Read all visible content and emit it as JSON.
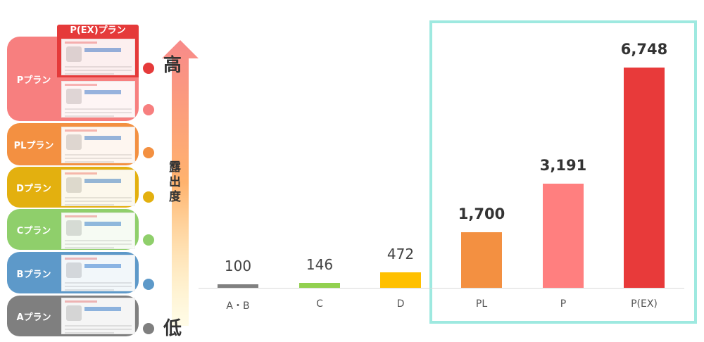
{
  "plans": [
    {
      "label": "Pプラン",
      "color": "#f77f7f"
    },
    {
      "label": "PLプラン",
      "color": "#f39041"
    },
    {
      "label": "Dプラン",
      "color": "#e3b00f"
    },
    {
      "label": "Cプラン",
      "color": "#8fcf6b"
    },
    {
      "label": "Bプラン",
      "color": "#5d99c9"
    },
    {
      "label": "Aプラン",
      "color": "#7f7f7f"
    }
  ],
  "ex_plan": {
    "label": "P(EX)プラン",
    "color": "#e53a3a"
  },
  "dot_colors": [
    "#e53a3a",
    "#f77f7f",
    "#f39041",
    "#e3b00f",
    "#8fcf6b",
    "#5d99c9",
    "#7f7f7f"
  ],
  "axis": {
    "high": "高",
    "low": "低",
    "label": "露出度"
  },
  "highlight_color": "#9ee9e0",
  "chart_data": {
    "type": "bar",
    "categories": [
      "A・B",
      "C",
      "D",
      "PL",
      "P",
      "P(EX)"
    ],
    "values": [
      100,
      146,
      472,
      1700,
      3191,
      6748
    ],
    "value_labels": [
      "100",
      "146",
      "472",
      "1,700",
      "3,191",
      "6,748"
    ],
    "colors": [
      "#808080",
      "#92d050",
      "#ffc000",
      "#f39041",
      "#ff7f7f",
      "#e83a3a"
    ],
    "highlighted": [
      "PL",
      "P",
      "P(EX)"
    ],
    "ylim": [
      0,
      6748
    ]
  }
}
